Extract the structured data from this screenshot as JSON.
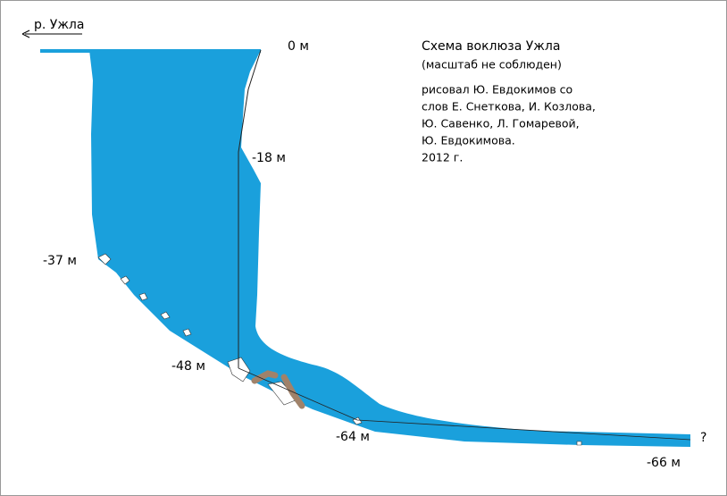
{
  "river_label": "р. Ужла",
  "title": "Схема воклюза Ужла",
  "subtitle": "(масштаб не соблюден)",
  "credits": [
    "рисовал Ю. Евдокимов со",
    "слов Е. Снеткова, И. Козлова,",
    "Ю. Савенко, Л. Гомаревой,",
    "Ю. Евдокимова.",
    "2012 г."
  ],
  "depth_labels": [
    "0 м",
    "-18 м",
    "-37 м",
    "-48 м",
    "-64 м",
    "-66 м"
  ],
  "unknown_marker": "?"
}
